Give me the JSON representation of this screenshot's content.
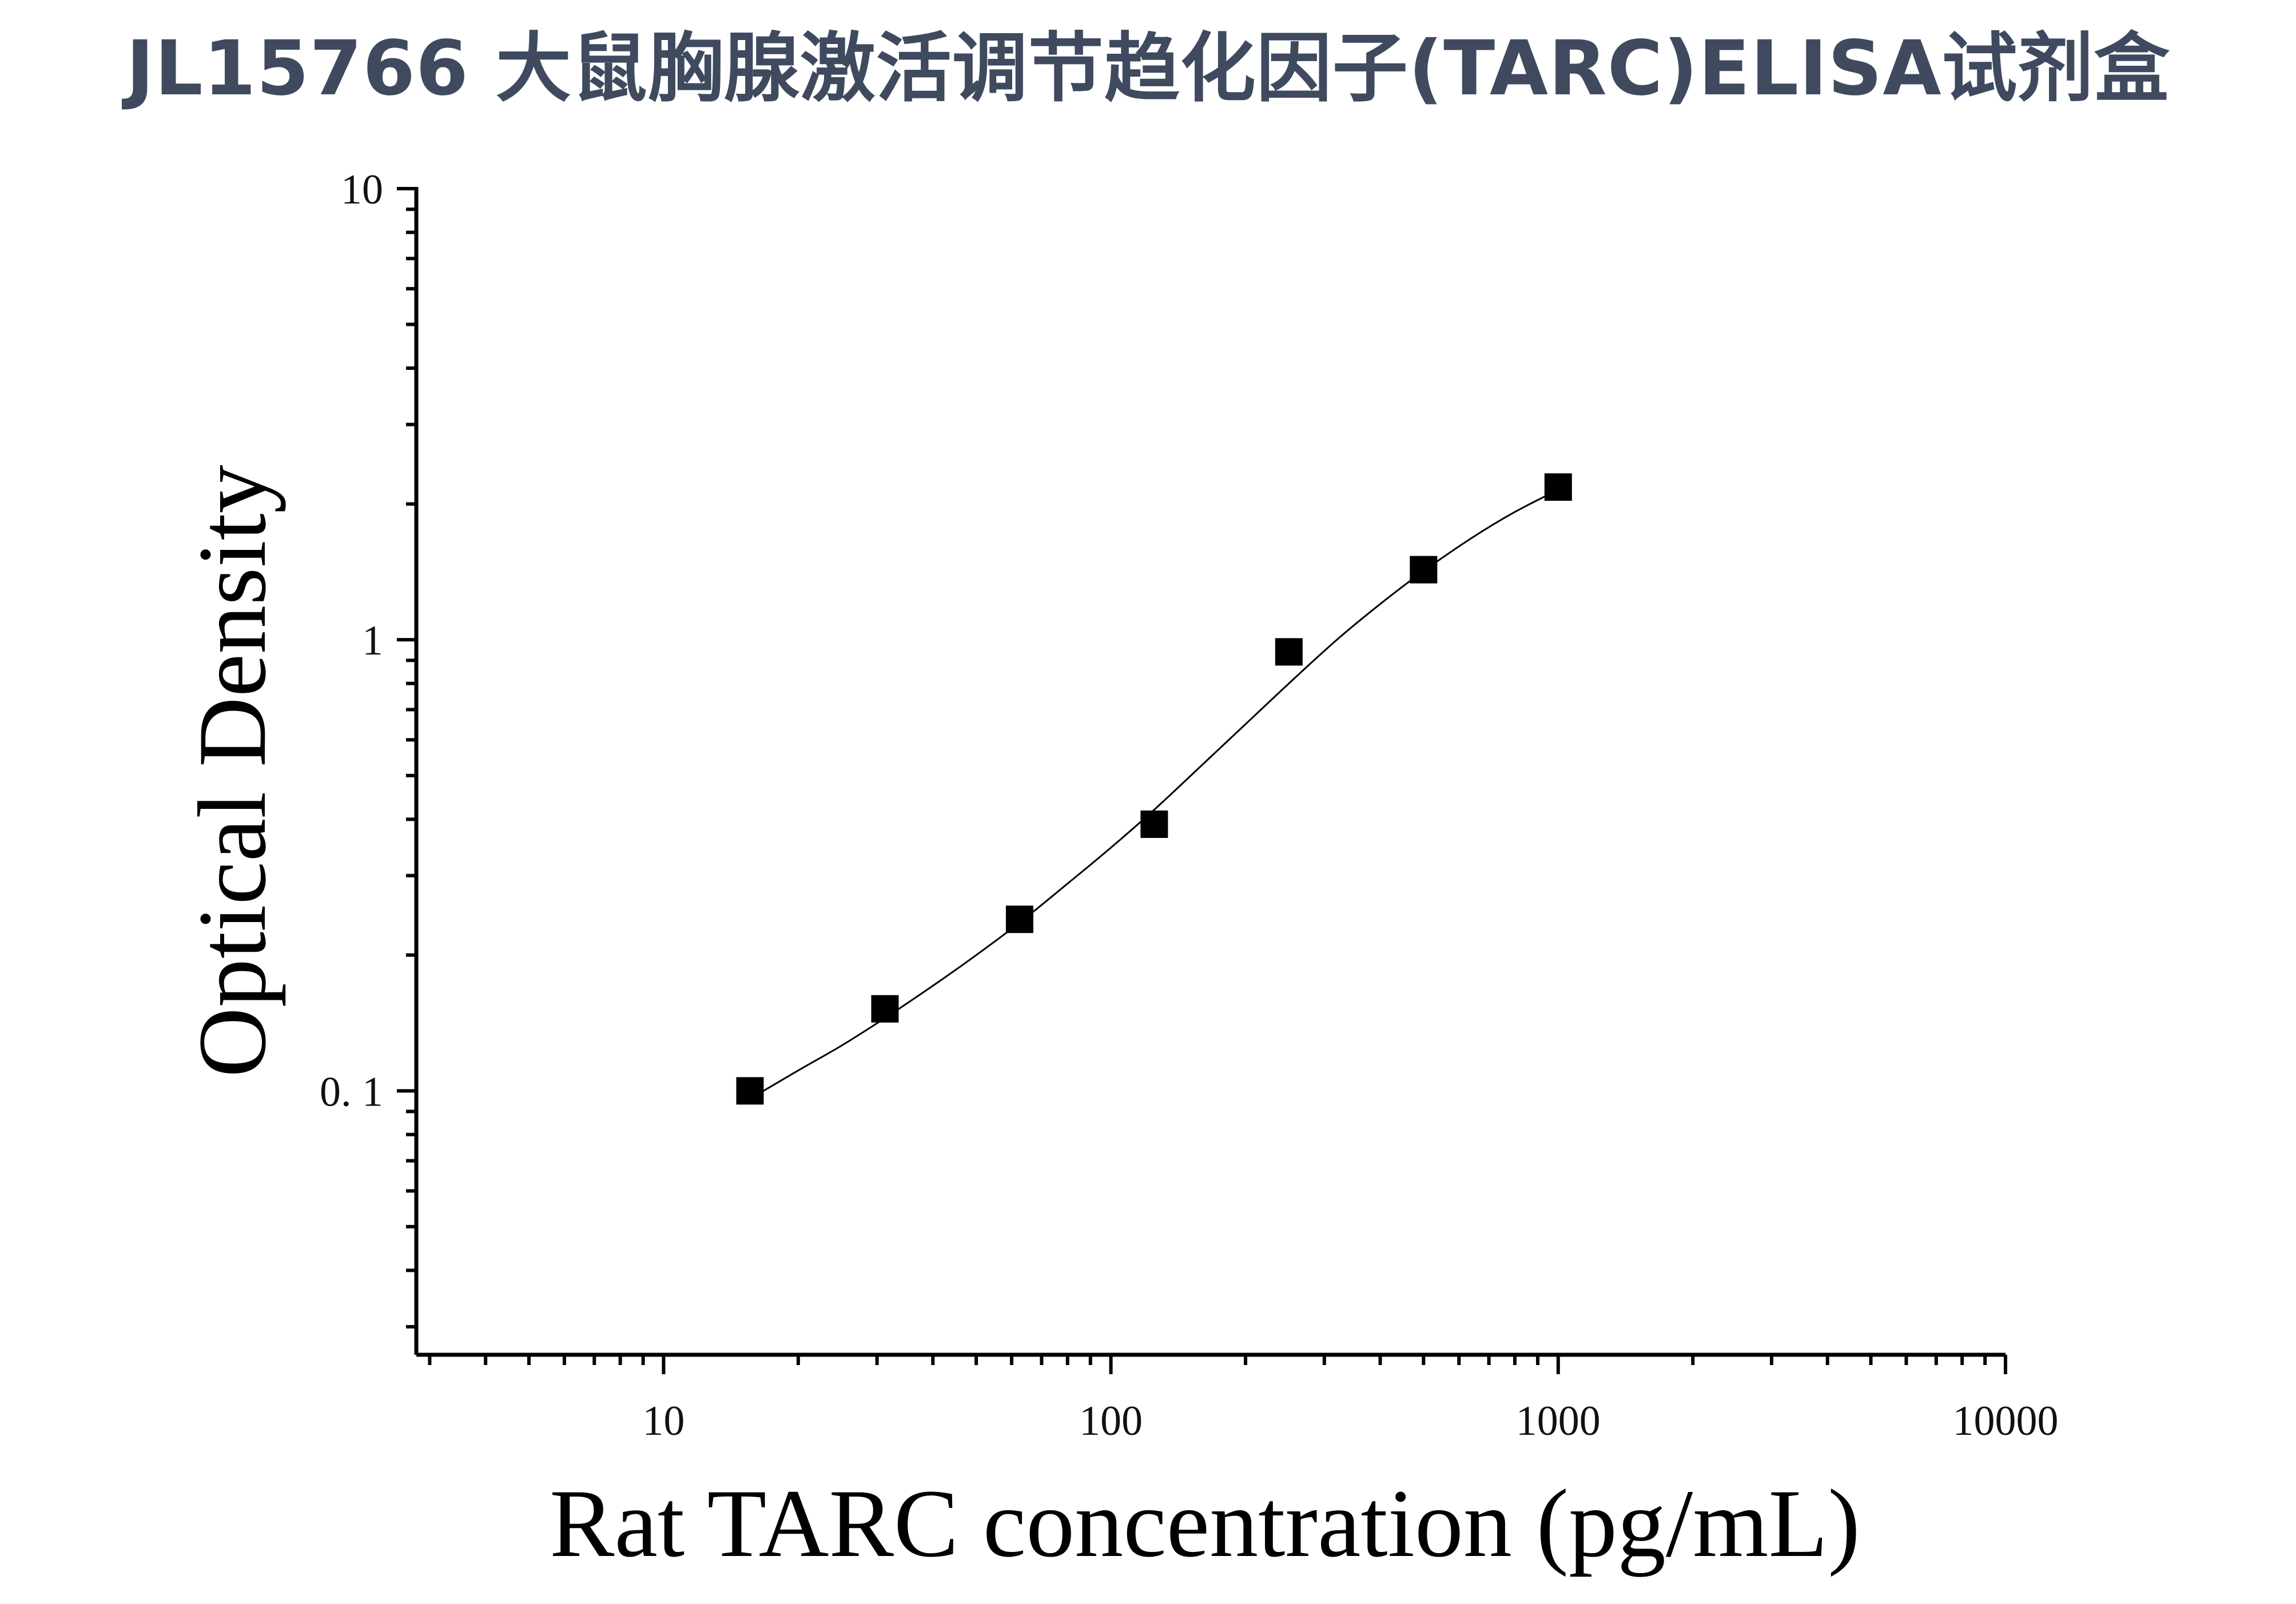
{
  "chart_data": {
    "type": "scatter",
    "title": "JL15766 大鼠胸腺激活调节趋化因子(TARC)ELISA试剂盒",
    "xlabel": "Rat TARC concentration (pg/mL)",
    "ylabel": "Optical Density",
    "x_scale": "log",
    "y_scale": "log",
    "xlim": [
      2.8,
      10000
    ],
    "ylim": [
      0.026,
      10
    ],
    "x_ticks": [
      {
        "value": 10,
        "label": "10"
      },
      {
        "value": 100,
        "label": "100"
      },
      {
        "value": 1000,
        "label": "1000"
      },
      {
        "value": 10000,
        "label": "10000"
      }
    ],
    "y_ticks": [
      {
        "value": 0.1,
        "label": "0. 1"
      },
      {
        "value": 1,
        "label": "1"
      },
      {
        "value": 10,
        "label": "10"
      }
    ],
    "grid": false,
    "legend": "none",
    "series": [
      {
        "marker": "square",
        "color": "#000000",
        "x": [
          15.6,
          31.25,
          62.5,
          125,
          250,
          500,
          1000
        ],
        "y": [
          0.1,
          0.152,
          0.24,
          0.39,
          0.94,
          1.43,
          2.18
        ]
      }
    ],
    "fit_curve": {
      "type": "4PL",
      "color": "#000000",
      "x_range": [
        15.6,
        1000
      ],
      "points": [
        [
          15.6,
          0.096
        ],
        [
          20,
          0.111
        ],
        [
          25,
          0.126
        ],
        [
          31.25,
          0.145
        ],
        [
          40,
          0.171
        ],
        [
          50,
          0.2
        ],
        [
          62.5,
          0.236
        ],
        [
          80,
          0.288
        ],
        [
          100,
          0.346
        ],
        [
          125,
          0.42
        ],
        [
          160,
          0.528
        ],
        [
          200,
          0.65
        ],
        [
          250,
          0.8
        ],
        [
          320,
          1.0
        ],
        [
          400,
          1.2
        ],
        [
          500,
          1.42
        ],
        [
          640,
          1.68
        ],
        [
          800,
          1.92
        ],
        [
          1000,
          2.15
        ]
      ]
    }
  }
}
